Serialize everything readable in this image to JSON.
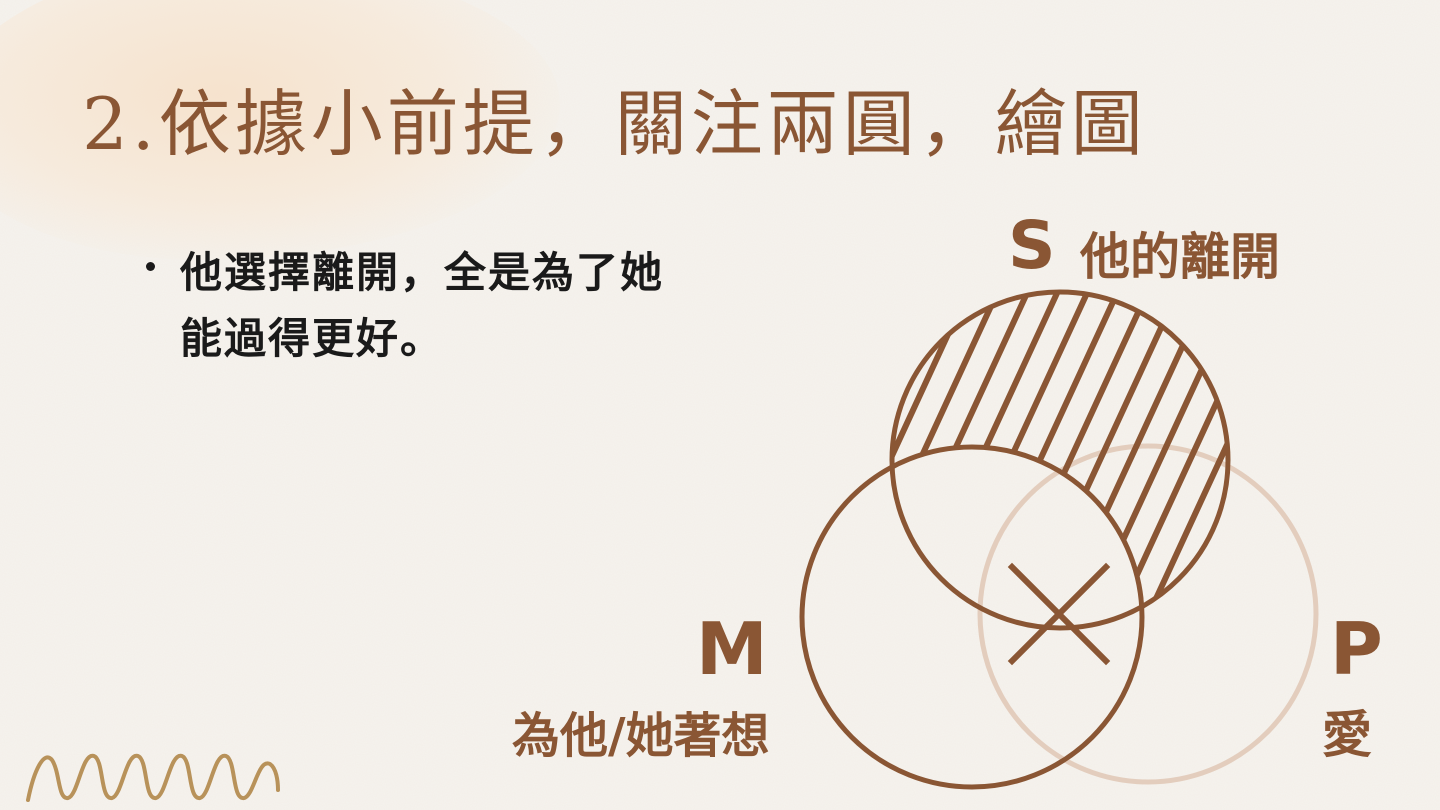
{
  "title": "2.依據小前提，關注兩圓，繪圖",
  "bullet": {
    "text": "他選擇離開，全是為了她能過得更好。"
  },
  "venn": {
    "circles": [
      {
        "letter": "S",
        "term": "他的離開",
        "shading": "hatched"
      },
      {
        "letter": "M",
        "term": "為他/她著想",
        "shading": "none"
      },
      {
        "letter": "P",
        "term": "愛",
        "shading": "none",
        "tone": "faded"
      }
    ],
    "marks": [
      {
        "type": "cross",
        "region": "S∩M∩P"
      }
    ]
  },
  "colors": {
    "accent": "#8a5634",
    "faded_circle": "#e3cdbd",
    "text": "#1a1a1a",
    "background": "#f6f3ee",
    "squiggle": "#b8925a"
  },
  "icons": [
    "cross-mark-icon",
    "zigzag-decoration-icon"
  ]
}
